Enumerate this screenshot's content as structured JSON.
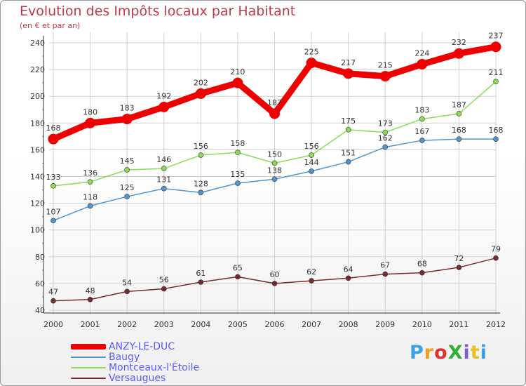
{
  "title": "Evolution des Impôts locaux par Habitant",
  "subtitle": "(en € et par an)",
  "logo_text": "ProXiti",
  "logo_colors": [
    "#3aa0e8",
    "#f0a020",
    "#e03030",
    "#2fae3a",
    "#7a5fd0",
    "#e8c020",
    "#3aa0e8"
  ],
  "colors": {
    "grid": "#cfcfcf",
    "axis": "#333333",
    "label": "#333333",
    "minor_tick": "#e06070"
  },
  "chart_data": {
    "type": "line",
    "categories": [
      "2000",
      "2001",
      "2002",
      "2003",
      "2004",
      "2005",
      "2006",
      "2007",
      "2008",
      "2009",
      "2010",
      "2011",
      "2012"
    ],
    "ylim": [
      40,
      240
    ],
    "yticks": [
      40,
      60,
      80,
      100,
      120,
      140,
      160,
      180,
      200,
      220,
      240
    ],
    "grid": true,
    "legend_position": "bottom-left",
    "series": [
      {
        "name": "ANZY-LE-DUC",
        "color": "#ee0000",
        "values": [
          168,
          180,
          183,
          192,
          202,
          210,
          187,
          225,
          217,
          215,
          224,
          232,
          237
        ]
      },
      {
        "name": "Baugy",
        "color": "#4f95cf",
        "values": [
          107,
          118,
          125,
          131,
          128,
          135,
          138,
          144,
          151,
          162,
          167,
          168,
          168
        ]
      },
      {
        "name": "Montceaux-l'Étoile",
        "color": "#8bdc54",
        "values": [
          133,
          136,
          145,
          146,
          156,
          158,
          150,
          156,
          175,
          173,
          183,
          187,
          211
        ]
      },
      {
        "name": "Versaugues",
        "color": "#7a2a2a",
        "values": [
          47,
          48,
          54,
          56,
          61,
          65,
          60,
          62,
          64,
          67,
          68,
          72,
          79
        ]
      }
    ]
  }
}
